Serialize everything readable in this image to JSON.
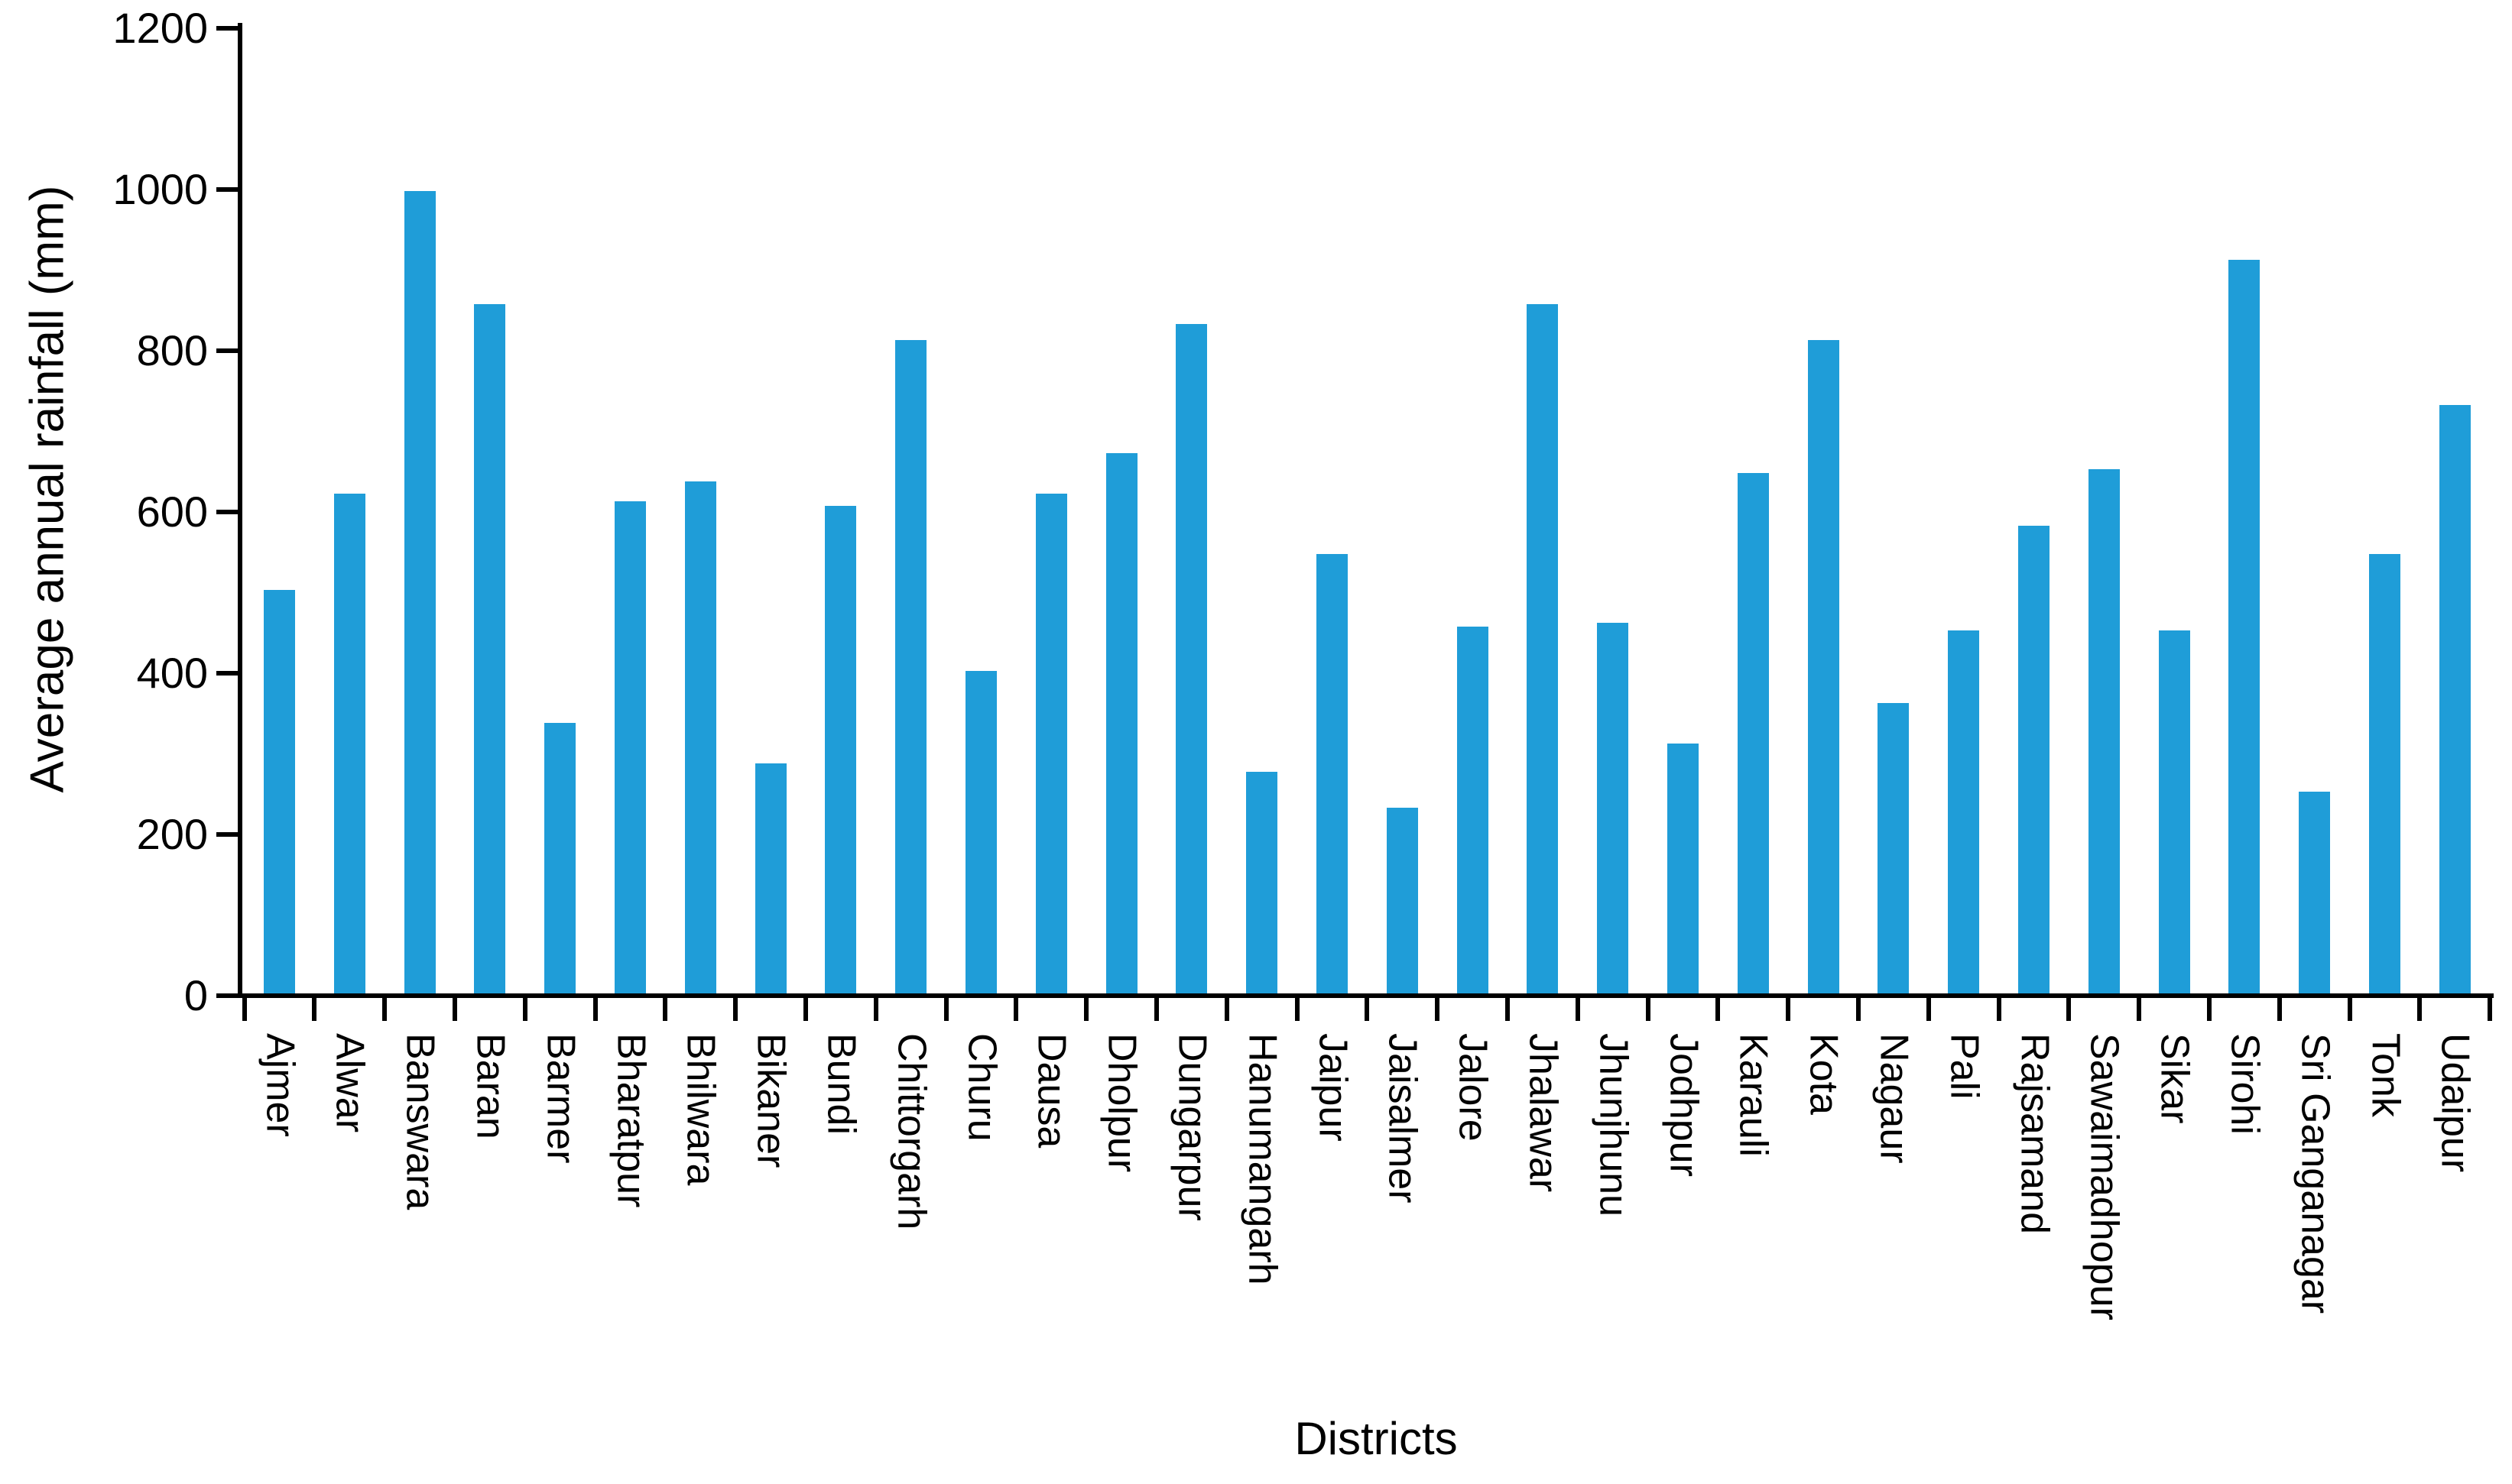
{
  "chart_data": {
    "type": "bar",
    "title": "",
    "xlabel": "Districts",
    "ylabel": "Average annual rainfall (mm)",
    "categories": [
      "Ajmer",
      "Alwar",
      "Banswara",
      "Baran",
      "Barmer",
      "Bharatpur",
      "Bhilwara",
      "Bikaner",
      "Bundi",
      "Chittorgarh",
      "Churu",
      "Dausa",
      "Dholpur",
      "Dungarpur",
      "Hanumangarh",
      "Jaipur",
      "Jaisalmer",
      "Jalore",
      "Jhalawar",
      "Jhunjhunu",
      "Jodhpur",
      "Karauli",
      "Kota",
      "Nagaur",
      "Pali",
      "Rajsamand",
      "Sawaimadhopur",
      "Sikar",
      "Sirohi",
      "Sri Ganganagar",
      "Tonk",
      "Udaipur"
    ],
    "values": [
      500,
      620,
      995,
      855,
      335,
      610,
      635,
      285,
      605,
      810,
      400,
      620,
      670,
      830,
      275,
      545,
      230,
      455,
      855,
      460,
      310,
      645,
      810,
      360,
      450,
      580,
      650,
      450,
      910,
      250,
      545,
      730
    ],
    "ylim": [
      0,
      1200
    ],
    "ytick_step": 200,
    "ytick_labels": [
      "0",
      "200",
      "400",
      "600",
      "800",
      "1000",
      "1200"
    ],
    "grid": "off",
    "legend": "none",
    "bar_color": "#1F9DD8",
    "axis_color": "#000000",
    "background_color": "#FFFFFF"
  }
}
